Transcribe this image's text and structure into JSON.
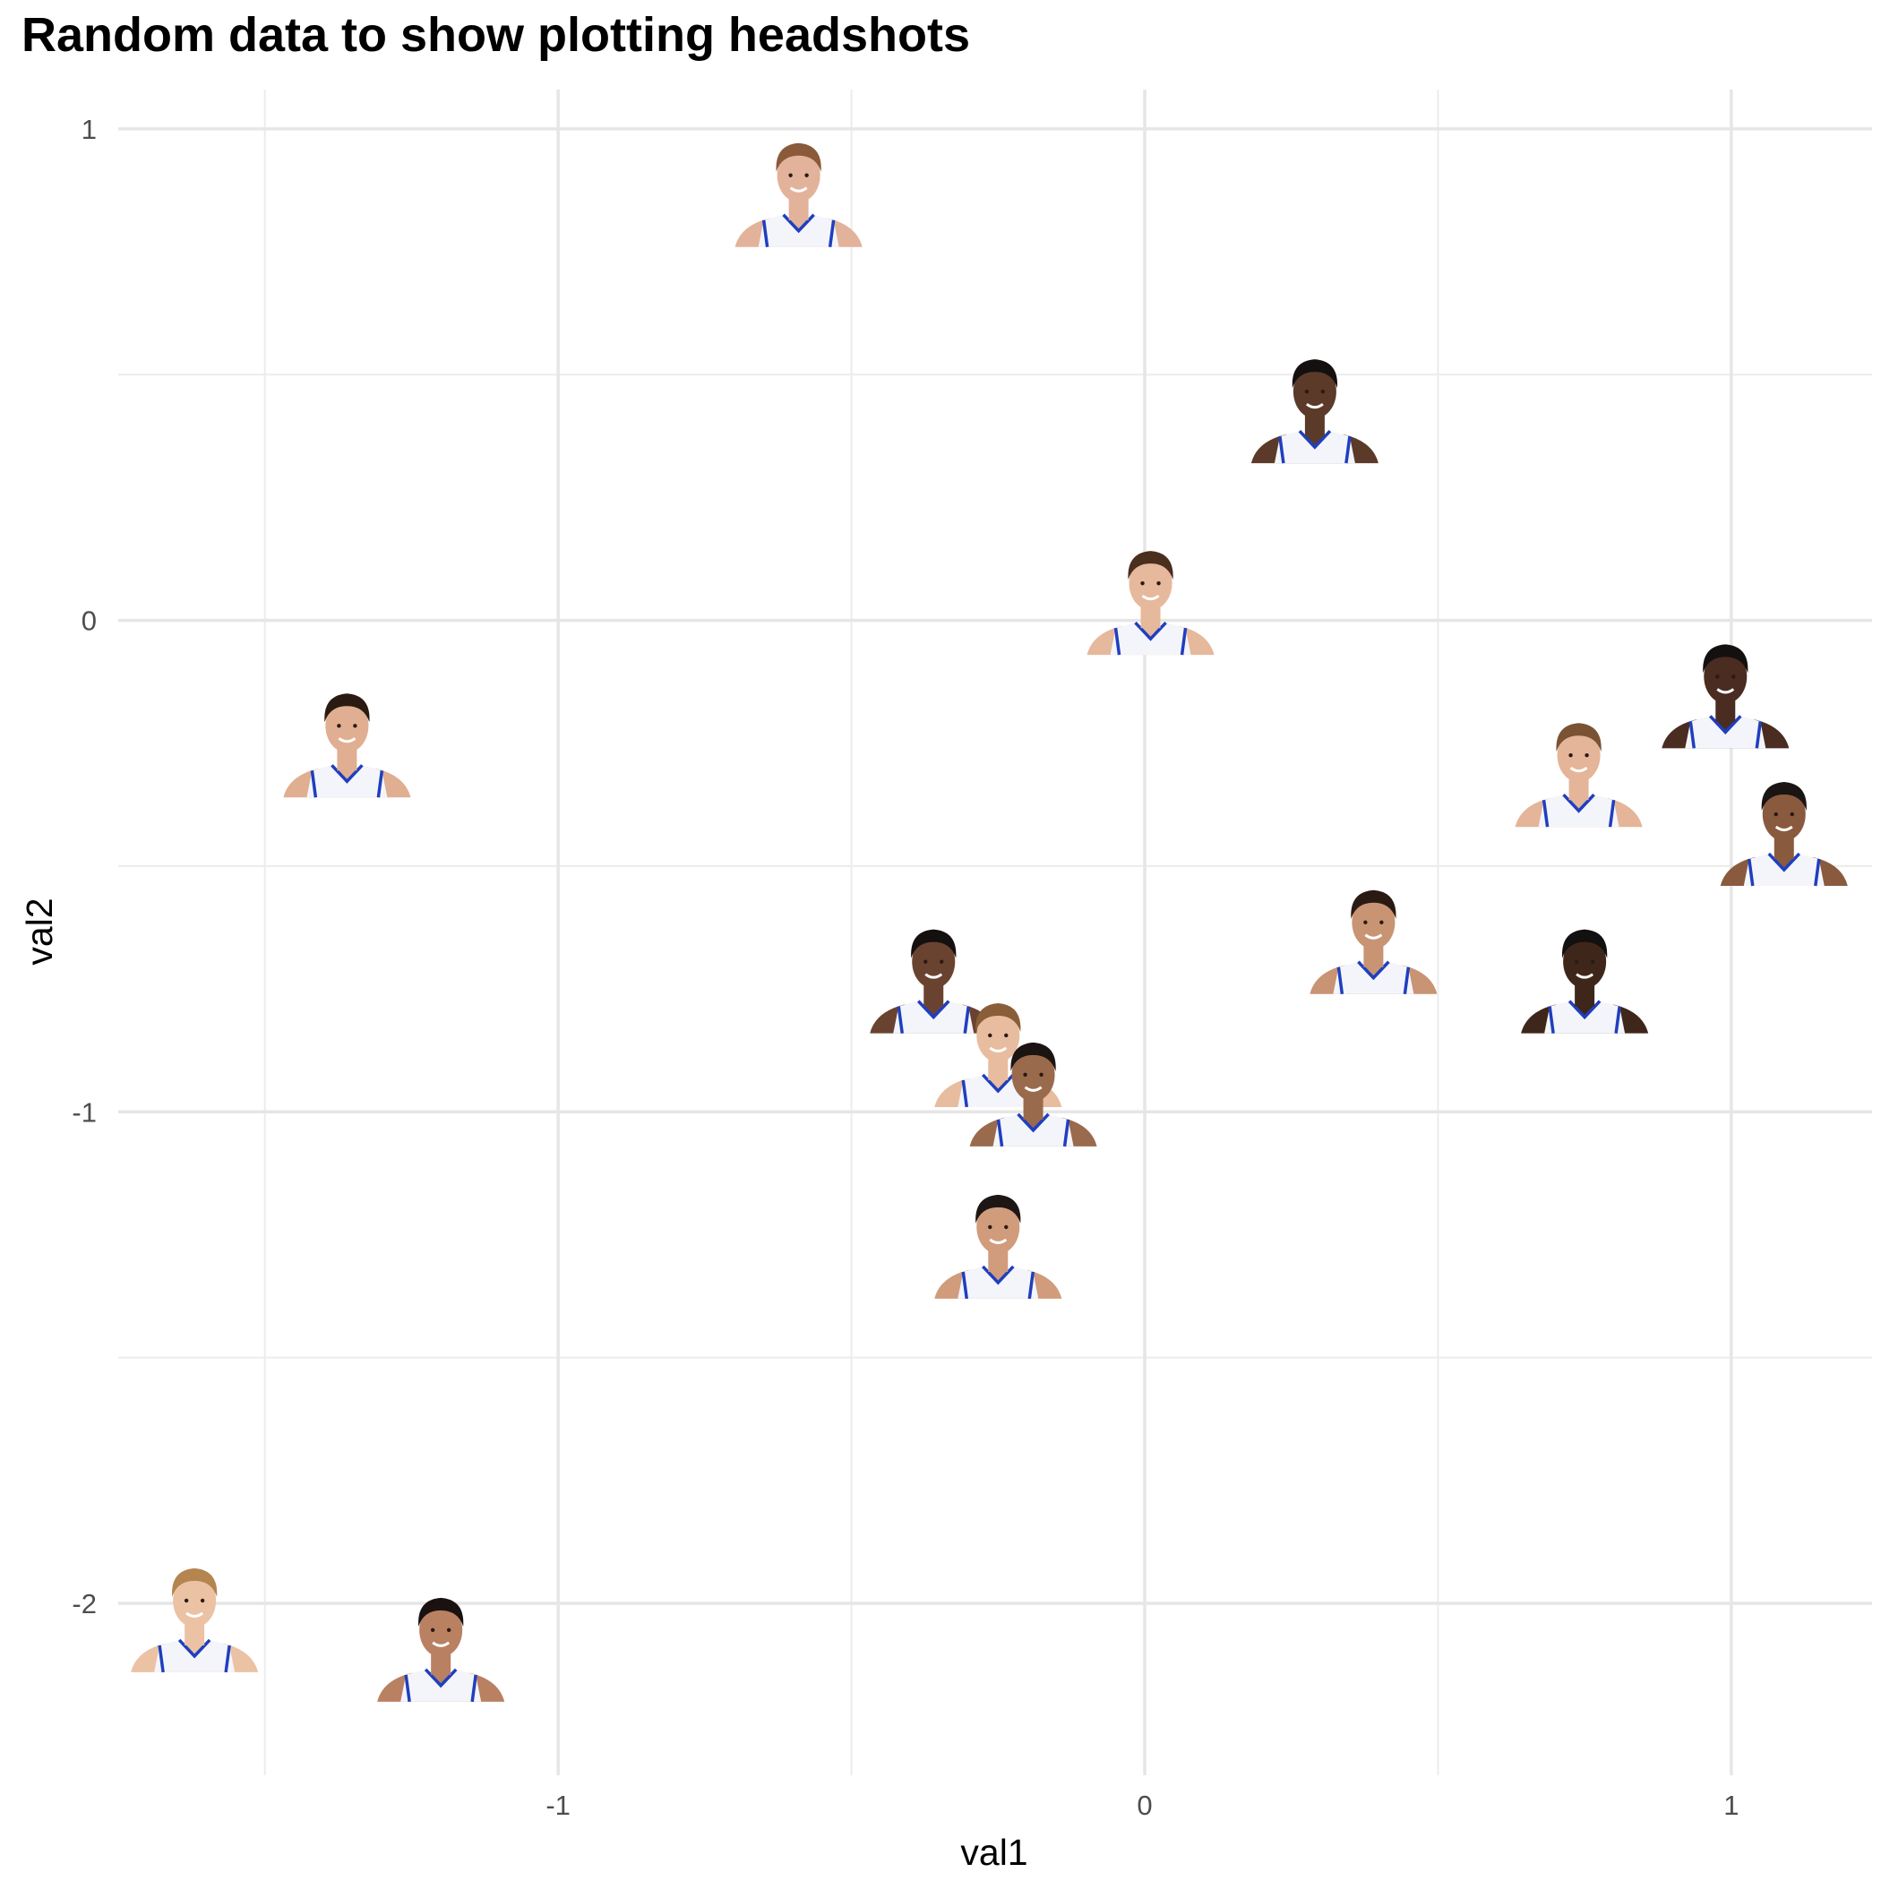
{
  "chart_data": {
    "type": "scatter",
    "title": "Random data to show plotting headshots",
    "xlabel": "val1",
    "ylabel": "val2",
    "xlim": [
      -1.75,
      1.24
    ],
    "ylim": [
      -2.35,
      1.08
    ],
    "x_ticks": [
      -1,
      0,
      1
    ],
    "y_ticks": [
      1,
      0,
      -1,
      -2
    ],
    "x_tick_labels": [
      "-1",
      "0",
      "1"
    ],
    "y_tick_labels": [
      "1",
      "0",
      "-1",
      "-2"
    ],
    "x_minor": [
      -1.5,
      -0.5,
      0.5
    ],
    "y_minor": [
      0.5,
      -0.5,
      -1.5
    ],
    "grid": true,
    "marker": "player-headshot",
    "points": [
      {
        "x": -0.59,
        "y": 0.88
      },
      {
        "x": 0.29,
        "y": 0.44
      },
      {
        "x": 0.01,
        "y": 0.05
      },
      {
        "x": -1.36,
        "y": -0.24
      },
      {
        "x": 0.99,
        "y": -0.14
      },
      {
        "x": 0.74,
        "y": -0.3
      },
      {
        "x": 1.09,
        "y": -0.42
      },
      {
        "x": 0.39,
        "y": -0.64
      },
      {
        "x": 0.75,
        "y": -0.72
      },
      {
        "x": -0.36,
        "y": -0.72
      },
      {
        "x": -0.25,
        "y": -0.87
      },
      {
        "x": -0.19,
        "y": -0.95
      },
      {
        "x": -0.25,
        "y": -1.26
      },
      {
        "x": -1.62,
        "y": -2.02
      },
      {
        "x": -1.2,
        "y": -2.08
      }
    ],
    "skin_colors": [
      "#e2b39a",
      "#5b3a2a",
      "#e6b89c",
      "#e0ae90",
      "#4a2c20",
      "#e4b598",
      "#8a5a3e",
      "#c99474",
      "#3f261b",
      "#6a4330",
      "#e8bc9e",
      "#9a6a4c",
      "#d09c7c",
      "#ebc2a4",
      "#b98062"
    ],
    "hair_colors": [
      "#8a5a3a",
      "#141010",
      "#4a2e1e",
      "#2a1a12",
      "#151010",
      "#7a5234",
      "#1a1412",
      "#2a1a14",
      "#121010",
      "#151010",
      "#8a5e38",
      "#1c1412",
      "#1e1614",
      "#b5854f",
      "#1a1210"
    ],
    "jersey_color": "#f4f5fa",
    "trim_color": "#1f3fbf"
  }
}
